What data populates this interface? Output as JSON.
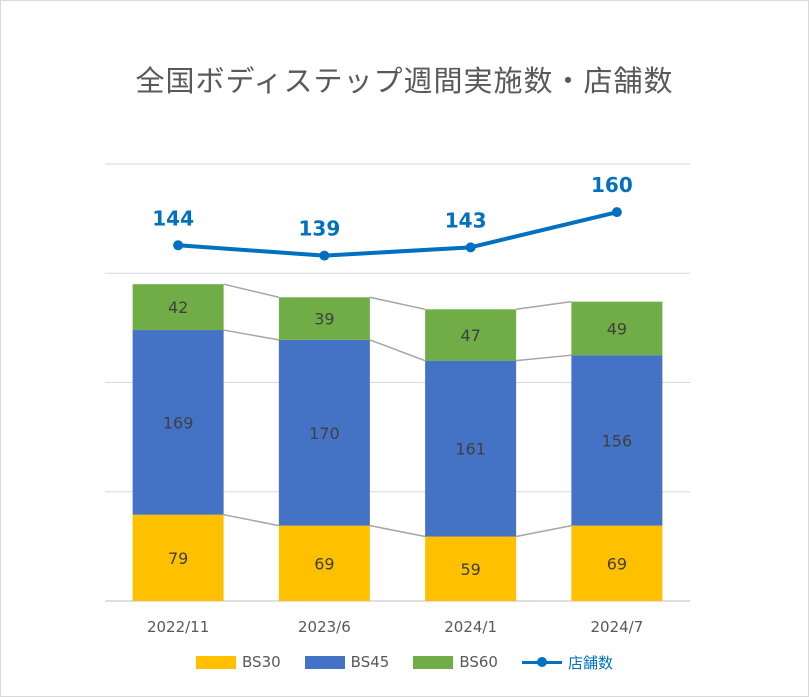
{
  "chart_data": {
    "type": "bar",
    "title": "全国ボディステップ週間実施数・店舗数",
    "categories": [
      "2022/11",
      "2023/6",
      "2024/1",
      "2024/7"
    ],
    "series": [
      {
        "name": "BS30",
        "type": "bar",
        "color": "#FFC000",
        "values": [
          79,
          69,
          59,
          69
        ]
      },
      {
        "name": "BS45",
        "type": "bar",
        "color": "#4472C4",
        "values": [
          169,
          170,
          161,
          156
        ]
      },
      {
        "name": "BS60",
        "type": "bar",
        "color": "#70AD47",
        "values": [
          42,
          39,
          47,
          49
        ]
      },
      {
        "name": "店舗数",
        "type": "line",
        "color": "#0070C0",
        "values": [
          144,
          139,
          143,
          160
        ]
      }
    ],
    "stacked": true,
    "ylim": [
      0,
      400
    ],
    "grid": true,
    "legend_position": "bottom",
    "series_lines": true
  }
}
